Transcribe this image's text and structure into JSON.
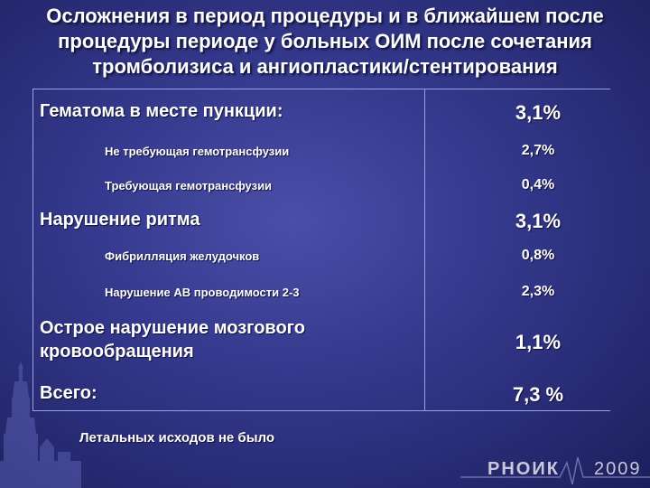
{
  "title": {
    "line1": "Осложнения в период процедуры и в ближайшем после",
    "line2": "процедуры периоде у больных ОИМ после сочетания",
    "line3": "тромболизиса и ангиопластики/стентирования"
  },
  "rows": [
    {
      "label": "Гематома в месте пункции:",
      "value": "3,1%"
    },
    {
      "label": "Не требующая гемотрансфузии",
      "value": "2,7%"
    },
    {
      "label": "Требующая гемотрансфузии",
      "value": "0,4%"
    },
    {
      "label": "Нарушение ритма",
      "value": "3,1%"
    },
    {
      "label": "Фибрилляция желудочков",
      "value": "0,8%"
    },
    {
      "label": "Нарушение АВ проводимости 2-3",
      "value": "2,3%"
    },
    {
      "label_line1": "Острое нарушение мозгового",
      "label_line2": "кровообращения",
      "value": "1,1%"
    },
    {
      "label": "Всего:",
      "value": "7,3 %"
    }
  ],
  "footnote": "Летальных исходов не было",
  "logo": {
    "text": "РНОИК",
    "year": "2009"
  }
}
